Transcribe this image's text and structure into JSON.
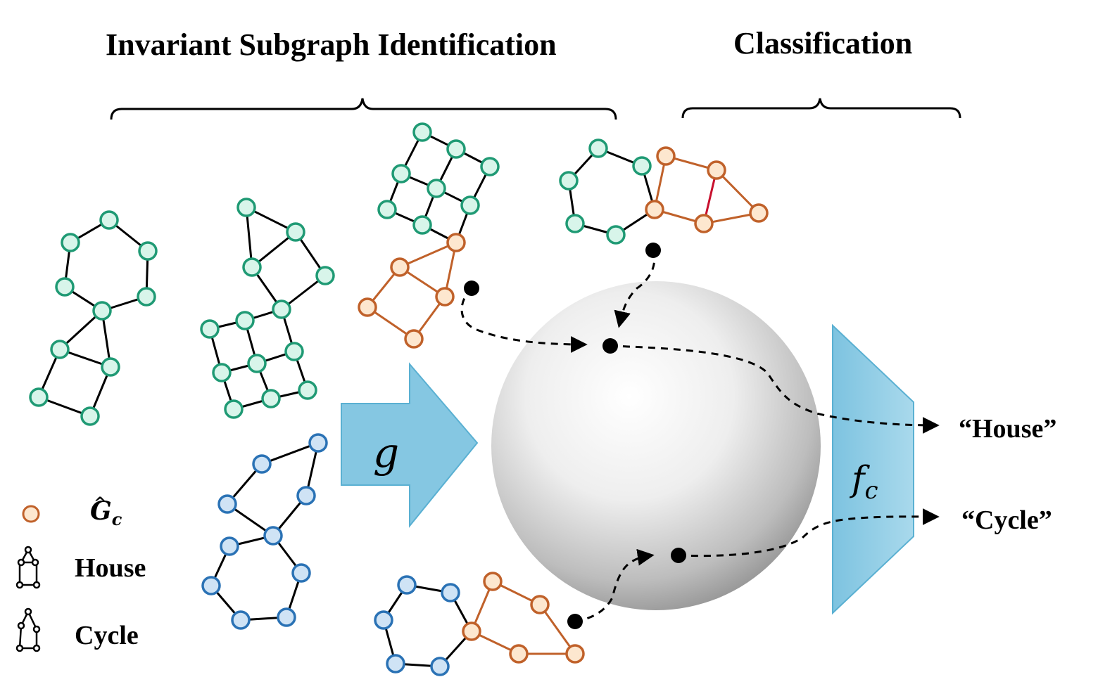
{
  "titles": {
    "left": "Invariant Subgraph Identification",
    "right": "Classification"
  },
  "functions": {
    "encoder": "g",
    "classifier_base": "f",
    "classifier_sub": "c"
  },
  "outputs": {
    "house": "“House”",
    "cycle": "“Cycle”"
  },
  "legend": {
    "subgraph_symbol_base": "G",
    "subgraph_symbol_hat": "^",
    "subgraph_symbol_sub": "c",
    "house": "House",
    "cycle": "Cycle"
  },
  "colors": {
    "green_stroke": "#1f9a74",
    "green_fill": "#d8f5ea",
    "blue_stroke": "#2a72b5",
    "blue_fill": "#cfe3f5",
    "orange_stroke": "#c0612a",
    "orange_fill": "#fde7cf",
    "arrow_fill": "#85c7e2",
    "arrow_stroke": "#5ab0d2",
    "highlight_edge": "#c8102e"
  }
}
